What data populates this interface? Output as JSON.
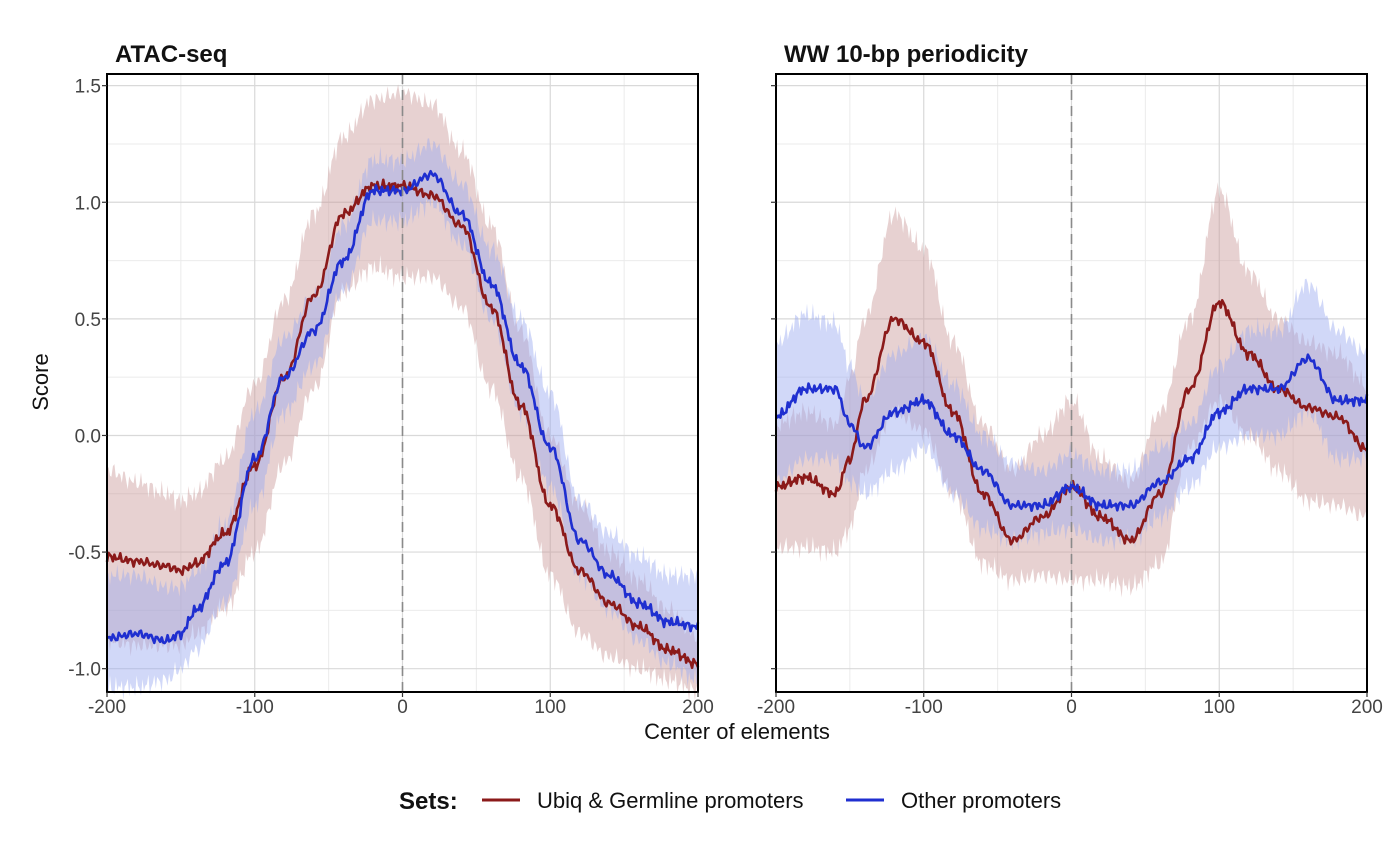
{
  "chart_data": [
    {
      "type": "line",
      "title": "ATAC-seq",
      "xlim": [
        -200,
        200
      ],
      "ylim": [
        -1.1,
        1.55
      ],
      "xticks": [
        -200,
        -100,
        0,
        100,
        200
      ],
      "xtick_labels": [
        "-200",
        "-100",
        "0",
        "100",
        "200"
      ],
      "yticks": [
        -1.0,
        -0.5,
        0.0,
        0.5,
        1.0,
        1.5
      ],
      "ytick_labels": [
        "-1.0",
        "-0.5",
        "0.0",
        "0.5",
        "1.0",
        "1.5"
      ],
      "vline": 0,
      "grid": true,
      "series": [
        {
          "name": "Ubiq & Germline promoters",
          "color": "#8b1a1a",
          "band_color": "#c99a9a",
          "x": [
            -200,
            -180,
            -160,
            -150,
            -140,
            -120,
            -100,
            -80,
            -60,
            -40,
            -20,
            0,
            20,
            40,
            60,
            80,
            100,
            120,
            140,
            160,
            180,
            200
          ],
          "y": [
            -0.52,
            -0.54,
            -0.56,
            -0.58,
            -0.55,
            -0.42,
            -0.13,
            0.25,
            0.6,
            0.95,
            1.07,
            1.07,
            1.03,
            0.9,
            0.55,
            0.13,
            -0.3,
            -0.58,
            -0.72,
            -0.82,
            -0.92,
            -0.98
          ],
          "lower": [
            -0.88,
            -0.9,
            -0.9,
            -0.9,
            -0.85,
            -0.74,
            -0.5,
            -0.12,
            0.2,
            0.62,
            0.72,
            0.68,
            0.68,
            0.55,
            0.2,
            -0.18,
            -0.6,
            -0.85,
            -0.95,
            -1.0,
            -1.05,
            -1.1
          ],
          "upper": [
            -0.15,
            -0.2,
            -0.25,
            -0.28,
            -0.25,
            -0.1,
            0.22,
            0.58,
            0.95,
            1.28,
            1.44,
            1.47,
            1.42,
            1.22,
            0.9,
            0.45,
            0.0,
            -0.3,
            -0.5,
            -0.62,
            -0.75,
            -0.86
          ]
        },
        {
          "name": "Other promoters",
          "color": "#1f2fd0",
          "band_color": "#9aa8f0",
          "x": [
            -200,
            -180,
            -160,
            -150,
            -140,
            -120,
            -100,
            -80,
            -60,
            -40,
            -20,
            0,
            20,
            40,
            60,
            80,
            100,
            120,
            140,
            160,
            180,
            200
          ],
          "y": [
            -0.87,
            -0.85,
            -0.88,
            -0.85,
            -0.75,
            -0.55,
            -0.1,
            0.25,
            0.45,
            0.75,
            1.05,
            1.05,
            1.12,
            0.95,
            0.65,
            0.3,
            -0.05,
            -0.45,
            -0.6,
            -0.72,
            -0.8,
            -0.82
          ],
          "lower": [
            -1.08,
            -1.08,
            -1.05,
            -1.0,
            -0.92,
            -0.72,
            -0.3,
            0.1,
            0.3,
            0.62,
            0.92,
            0.92,
            1.0,
            0.82,
            0.5,
            0.1,
            -0.22,
            -0.6,
            -0.75,
            -0.88,
            -0.98,
            -1.05
          ],
          "upper": [
            -0.6,
            -0.6,
            -0.65,
            -0.65,
            -0.58,
            -0.38,
            0.1,
            0.42,
            0.6,
            0.9,
            1.18,
            1.18,
            1.25,
            1.08,
            0.8,
            0.5,
            0.18,
            -0.28,
            -0.42,
            -0.52,
            -0.6,
            -0.6
          ]
        }
      ]
    },
    {
      "type": "line",
      "title": "WW 10-bp periodicity",
      "xlim": [
        -200,
        200
      ],
      "ylim": [
        -1.1,
        1.55
      ],
      "xticks": [
        -200,
        -100,
        0,
        100,
        200
      ],
      "xtick_labels": [
        "-200",
        "-100",
        "0",
        "100",
        "200"
      ],
      "vline": 0,
      "grid": true,
      "series": [
        {
          "name": "Ubiq & Germline promoters",
          "color": "#8b1a1a",
          "band_color": "#c99a9a",
          "x": [
            -200,
            -180,
            -160,
            -150,
            -140,
            -120,
            -100,
            -80,
            -60,
            -40,
            -20,
            0,
            20,
            40,
            60,
            80,
            100,
            120,
            140,
            160,
            180,
            200
          ],
          "y": [
            -0.22,
            -0.18,
            -0.25,
            -0.1,
            0.15,
            0.5,
            0.4,
            0.1,
            -0.25,
            -0.45,
            -0.35,
            -0.22,
            -0.35,
            -0.45,
            -0.25,
            0.2,
            0.57,
            0.35,
            0.2,
            0.12,
            0.08,
            -0.06
          ],
          "lower": [
            -0.48,
            -0.48,
            -0.5,
            -0.4,
            -0.15,
            0.1,
            0.02,
            -0.25,
            -0.55,
            -0.62,
            -0.6,
            -0.62,
            -0.62,
            -0.65,
            -0.55,
            -0.05,
            0.15,
            0.0,
            -0.15,
            -0.28,
            -0.3,
            -0.35
          ],
          "upper": [
            0.05,
            0.1,
            0.05,
            0.25,
            0.5,
            0.95,
            0.8,
            0.4,
            0.05,
            -0.15,
            0.0,
            0.15,
            -0.1,
            -0.2,
            0.1,
            0.5,
            1.05,
            0.7,
            0.5,
            0.4,
            0.35,
            0.22
          ]
        },
        {
          "name": "Other promoters",
          "color": "#1f2fd0",
          "band_color": "#9aa8f0",
          "x": [
            -200,
            -180,
            -160,
            -150,
            -140,
            -120,
            -100,
            -80,
            -60,
            -40,
            -20,
            0,
            20,
            40,
            60,
            80,
            100,
            120,
            140,
            160,
            180,
            200
          ],
          "y": [
            0.08,
            0.2,
            0.2,
            0.05,
            -0.05,
            0.1,
            0.15,
            0.0,
            -0.15,
            -0.3,
            -0.3,
            -0.22,
            -0.3,
            -0.3,
            -0.2,
            -0.1,
            0.1,
            0.2,
            0.2,
            0.33,
            0.15,
            0.15
          ],
          "lower": [
            -0.2,
            -0.1,
            -0.1,
            -0.2,
            -0.25,
            -0.15,
            -0.05,
            -0.25,
            -0.4,
            -0.45,
            -0.42,
            -0.4,
            -0.45,
            -0.45,
            -0.35,
            -0.22,
            -0.05,
            0.0,
            0.0,
            0.1,
            -0.1,
            -0.1
          ],
          "upper": [
            0.4,
            0.52,
            0.48,
            0.3,
            0.15,
            0.35,
            0.42,
            0.22,
            0.0,
            -0.12,
            -0.15,
            -0.08,
            -0.15,
            -0.15,
            -0.05,
            0.05,
            0.3,
            0.45,
            0.45,
            0.65,
            0.45,
            0.35
          ]
        }
      ]
    }
  ],
  "shared": {
    "xlabel": "Center of elements",
    "ylabel": "Score",
    "legend_title": "Sets:",
    "legend_placement": "bottom",
    "legend": [
      {
        "label": "Ubiq & Germline promoters",
        "color": "#8b1a1a"
      },
      {
        "label": "Other promoters",
        "color": "#1f2fd0"
      }
    ]
  }
}
